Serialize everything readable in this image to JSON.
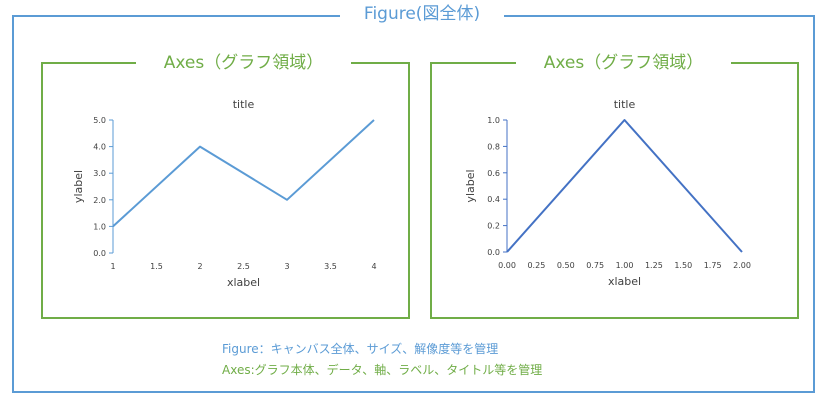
{
  "figure": {
    "title": "Figure(図全体)",
    "border_color": "#5b9bd5"
  },
  "axes_label": "Axes（グラフ領域）",
  "axes_color": "#70ad47",
  "notes": {
    "figure": "Figure：キャンバス全体、サイズ、解像度等を管理",
    "axes": "Axes:グラフ本体、データ、軸、ラベル、タイトル等を管理"
  },
  "chart_data": [
    {
      "type": "line",
      "title": "title",
      "xlabel": "xlabel",
      "ylabel": "ylabel",
      "x": [
        1,
        2,
        3,
        4
      ],
      "y": [
        1,
        4,
        2,
        5
      ],
      "xlim": [
        1,
        4
      ],
      "ylim": [
        0,
        5
      ],
      "xticks": [
        "1",
        "1.5",
        "2",
        "2.5",
        "3",
        "3.5",
        "4"
      ],
      "yticks": [
        "0.0",
        "1.0",
        "2.0",
        "3.0",
        "4.0",
        "5.0"
      ],
      "color": "#5b9bd5"
    },
    {
      "type": "line",
      "title": "title",
      "xlabel": "xlabel",
      "ylabel": "ylabel",
      "x": [
        0,
        1,
        2
      ],
      "y": [
        0,
        1,
        0
      ],
      "xlim": [
        0,
        2
      ],
      "ylim": [
        0,
        1
      ],
      "xticks": [
        "0.00",
        "0.25",
        "0.50",
        "0.75",
        "1.00",
        "1.25",
        "1.50",
        "1.75",
        "2.00"
      ],
      "yticks": [
        "0.0",
        "0.2",
        "0.4",
        "0.6",
        "0.8",
        "1.0"
      ],
      "color": "#4472c4"
    }
  ]
}
